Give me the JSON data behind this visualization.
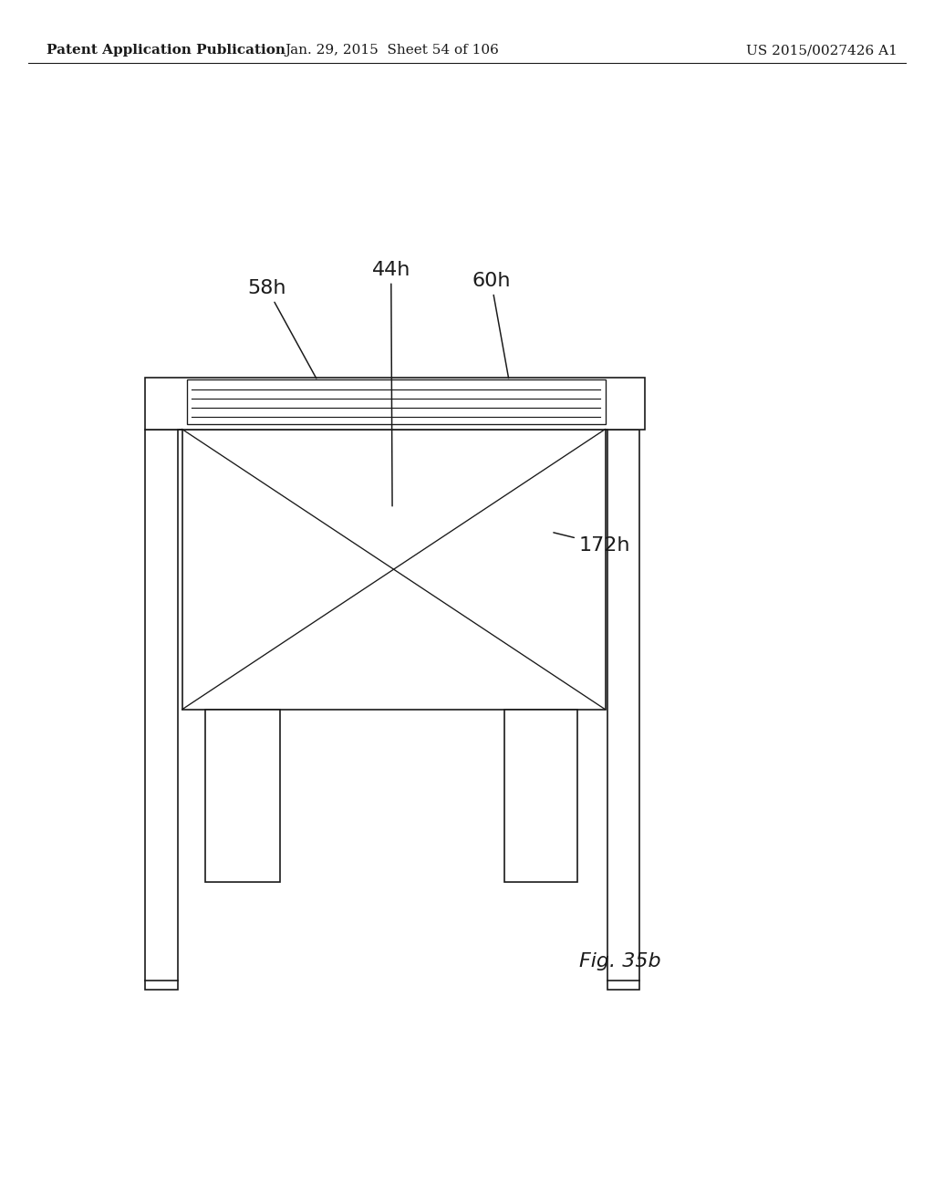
{
  "bg_color": "#ffffff",
  "header_left": "Patent Application Publication",
  "header_mid": "Jan. 29, 2015  Sheet 54 of 106",
  "header_right": "US 2015/0027426 A1",
  "fig_label": "Fig. 35b",
  "line_color": "#1a1a1a",
  "text_color": "#1a1a1a",
  "header_fontsize": 11,
  "label_fontsize": 16,
  "fig_label_fontsize": 16
}
